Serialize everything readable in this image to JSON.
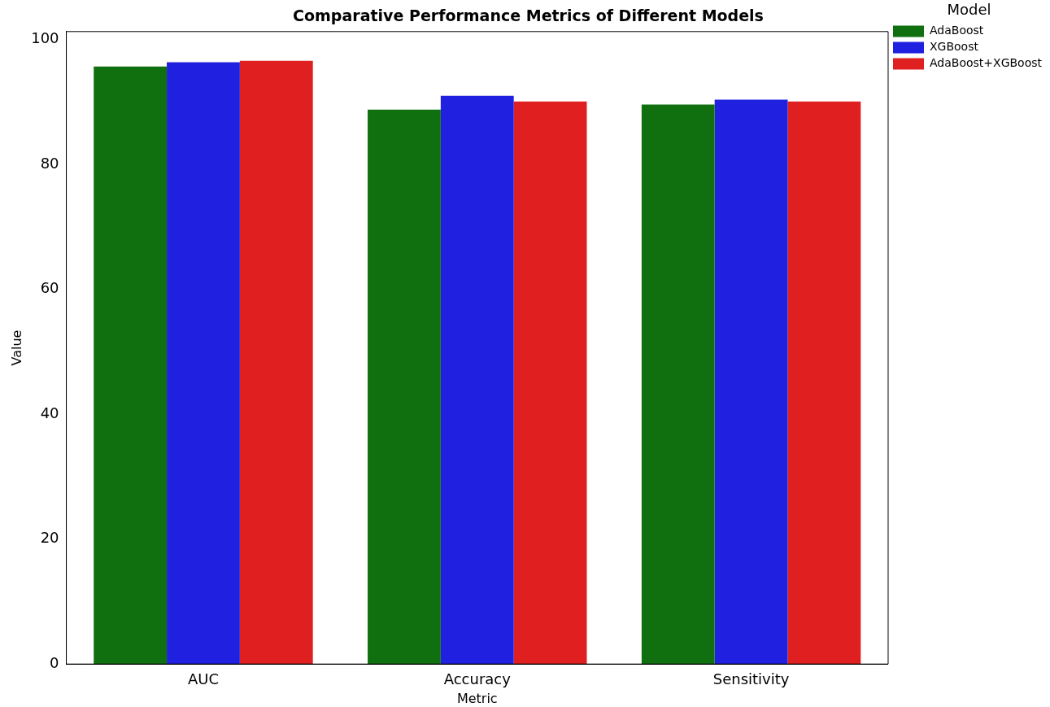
{
  "chart_data": {
    "type": "bar",
    "title": "Comparative Performance Metrics of Different Models",
    "xlabel": "Metric",
    "ylabel": "Value",
    "legend_title": "Model",
    "categories": [
      "AUC",
      "Accuracy",
      "Sensitivity"
    ],
    "series": [
      {
        "name": "AdaBoost",
        "color": "#107010",
        "values": [
          95.7,
          88.8,
          89.6
        ]
      },
      {
        "name": "XGBoost",
        "color": "#2020e0",
        "values": [
          96.4,
          91.0,
          90.4
        ]
      },
      {
        "name": "AdaBoost+XGBoost",
        "color": "#e02020",
        "values": [
          96.6,
          90.1,
          90.1
        ]
      }
    ],
    "ylim": [
      0,
      101.3
    ],
    "yticks": [
      0,
      20,
      40,
      60,
      80,
      100
    ],
    "grid": false,
    "legend": "top right"
  }
}
